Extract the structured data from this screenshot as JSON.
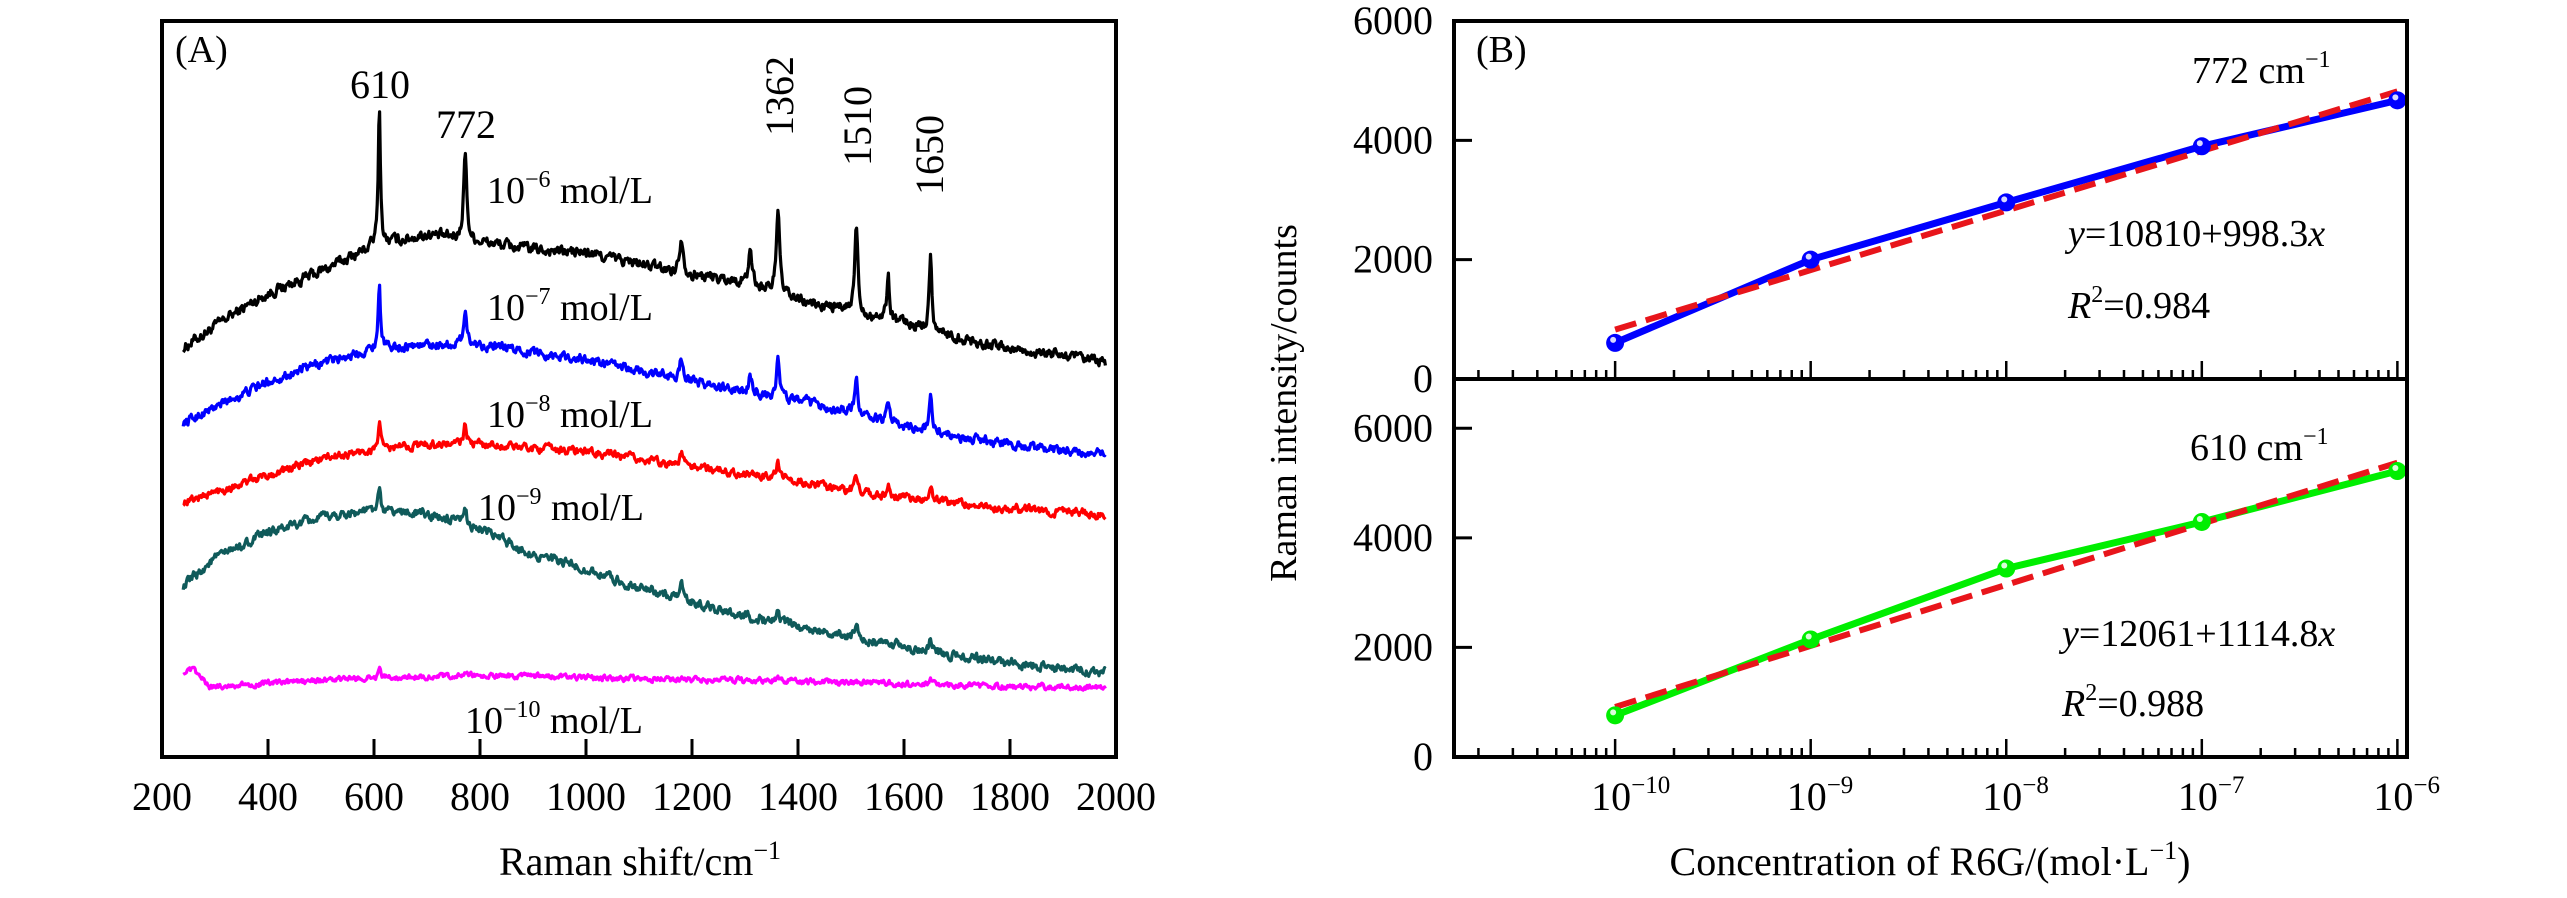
{
  "chart_data": [
    {
      "panel": "(A)",
      "type": "line",
      "title": "",
      "xlabel": "Raman shift/cm",
      "xlabel_superscript": "−1",
      "ylabel": "",
      "xlim": [
        200,
        2000
      ],
      "ylim": [
        0,
        100
      ],
      "y_units": "arbitrary (offset spectra, no y tick labels)",
      "x_ticks": [
        200,
        400,
        600,
        800,
        1000,
        1200,
        1400,
        1600,
        1800,
        2000
      ],
      "x_tick_labels": [
        "200",
        "400",
        "600",
        "800",
        "1000",
        "1200",
        "1400",
        "1600",
        "1800",
        "2000"
      ],
      "grid": false,
      "peak_annotations": [
        {
          "label": "610",
          "x": 610,
          "rotated": false
        },
        {
          "label": "772",
          "x": 772,
          "rotated": false
        },
        {
          "label": "1362",
          "x": 1362,
          "rotated": true
        },
        {
          "label": "1510",
          "x": 1510,
          "rotated": true
        },
        {
          "label": "1650",
          "x": 1650,
          "rotated": true
        }
      ],
      "series": [
        {
          "name": "10^-6 mol/L",
          "label_base": "10",
          "label_exp": "−6",
          "label_unit": " mol/L",
          "color": "#000000",
          "x_range": [
            240,
            1980
          ],
          "baseline": [
            [
              240,
              55.6
            ],
            [
              330,
              60
            ],
            [
              400,
              63
            ],
            [
              500,
              66
            ],
            [
              600,
              69.5
            ],
            [
              700,
              71
            ],
            [
              800,
              70
            ],
            [
              900,
              69
            ],
            [
              1000,
              68.5
            ],
            [
              1100,
              67
            ],
            [
              1200,
              65.5
            ],
            [
              1300,
              64.5
            ],
            [
              1400,
              62
            ],
            [
              1500,
              60.5
            ],
            [
              1600,
              59
            ],
            [
              1700,
              57
            ],
            [
              1800,
              55.5
            ],
            [
              1900,
              54.5
            ],
            [
              1980,
              53.5
            ]
          ],
          "peaks": [
            [
              610,
              18.5,
              5
            ],
            [
              772,
              12,
              7
            ],
            [
              1180,
              5,
              8
            ],
            [
              1310,
              5,
              7
            ],
            [
              1362,
              12,
              7
            ],
            [
              1510,
              12,
              7
            ],
            [
              1570,
              6,
              6
            ],
            [
              1650,
              10,
              6
            ]
          ],
          "noise": 0.6
        },
        {
          "name": "10^-7 mol/L",
          "label_base": "10",
          "label_exp": "−7",
          "label_unit": " mol/L",
          "color": "#0000ff",
          "x_range": [
            240,
            1980
          ],
          "baseline": [
            [
              240,
              45.4
            ],
            [
              300,
              47.5
            ],
            [
              400,
              51
            ],
            [
              500,
              53.5
            ],
            [
              600,
              55.5
            ],
            [
              700,
              56
            ],
            [
              800,
              56
            ],
            [
              900,
              55
            ],
            [
              1000,
              54
            ],
            [
              1100,
              52.5
            ],
            [
              1200,
              51
            ],
            [
              1300,
              49.5
            ],
            [
              1400,
              48.5
            ],
            [
              1500,
              46.8
            ],
            [
              1600,
              45
            ],
            [
              1700,
              43.5
            ],
            [
              1800,
              42.5
            ],
            [
              1900,
              41.5
            ],
            [
              1980,
              41
            ]
          ],
          "peaks": [
            [
              610,
              9,
              5
            ],
            [
              772,
              5,
              7
            ],
            [
              1180,
              3,
              8
            ],
            [
              1310,
              2.5,
              7
            ],
            [
              1362,
              5,
              7
            ],
            [
              1510,
              5,
              7
            ],
            [
              1570,
              2.5,
              6
            ],
            [
              1650,
              5,
              6
            ]
          ],
          "noise": 0.5
        },
        {
          "name": "10^-8 mol/L",
          "label_base": "10",
          "label_exp": "−8",
          "label_unit": " mol/L",
          "color": "#ff0000",
          "x_range": [
            240,
            1980
          ],
          "baseline": [
            [
              240,
              34.6
            ],
            [
              300,
              36
            ],
            [
              400,
              38.3
            ],
            [
              500,
              40.5
            ],
            [
              600,
              41.7
            ],
            [
              700,
              42.5
            ],
            [
              800,
              42.5
            ],
            [
              900,
              42
            ],
            [
              1000,
              41.5
            ],
            [
              1100,
              40.5
            ],
            [
              1200,
              39.5
            ],
            [
              1300,
              38.5
            ],
            [
              1400,
              37.5
            ],
            [
              1500,
              36
            ],
            [
              1600,
              35.3
            ],
            [
              1700,
              34.5
            ],
            [
              1800,
              33.8
            ],
            [
              1900,
              33.2
            ],
            [
              1980,
              32.9
            ]
          ],
          "peaks": [
            [
              610,
              4,
              5
            ],
            [
              772,
              2.5,
              7
            ],
            [
              1180,
              1.5,
              8
            ],
            [
              1362,
              2.5,
              7
            ],
            [
              1510,
              2.2,
              7
            ],
            [
              1570,
              1.3,
              6
            ],
            [
              1650,
              1.8,
              6
            ]
          ],
          "noise": 0.45
        },
        {
          "name": "10^-9 mol/L",
          "label_base": "10",
          "label_exp": "−9",
          "label_unit": " mol/L",
          "color": "#0f5a5a",
          "x_range": [
            240,
            1980
          ],
          "baseline": [
            [
              240,
              23.2
            ],
            [
              300,
              27
            ],
            [
              400,
              30.5
            ],
            [
              500,
              32.5
            ],
            [
              600,
              33.6
            ],
            [
              700,
              33
            ],
            [
              800,
              31
            ],
            [
              900,
              27.5
            ],
            [
              1000,
              25.5
            ],
            [
              1100,
              23
            ],
            [
              1200,
              21
            ],
            [
              1300,
              19.2
            ],
            [
              1400,
              17.8
            ],
            [
              1500,
              16.3
            ],
            [
              1600,
              15
            ],
            [
              1700,
              13.8
            ],
            [
              1800,
              12.8
            ],
            [
              1900,
              12
            ],
            [
              1980,
              11.5
            ]
          ],
          "peaks": [
            [
              610,
              2.8,
              5
            ],
            [
              772,
              2,
              7
            ],
            [
              1180,
              1.8,
              8
            ],
            [
              1362,
              2,
              7
            ],
            [
              1510,
              2,
              7
            ],
            [
              1650,
              2,
              6
            ]
          ],
          "noise": 0.5
        },
        {
          "name": "10^-10 mol/L",
          "label_base": "10",
          "label_exp": "−10",
          "label_unit": " mol/L",
          "color": "#ff00ff",
          "x_range": [
            240,
            1980
          ],
          "baseline": [
            [
              240,
              11.5
            ],
            [
              260,
              11.8
            ],
            [
              290,
              9.5
            ],
            [
              400,
              10
            ],
            [
              600,
              10.8
            ],
            [
              800,
              11
            ],
            [
              1000,
              10.8
            ],
            [
              1200,
              10.5
            ],
            [
              1400,
              10.3
            ],
            [
              1600,
              10
            ],
            [
              1800,
              9.6
            ],
            [
              1980,
              9.4
            ]
          ],
          "peaks": [
            [
              610,
              1.2,
              5
            ],
            [
              772,
              0.6,
              7
            ],
            [
              1362,
              0.5,
              7
            ],
            [
              1650,
              0.5,
              6
            ]
          ],
          "noise": 0.3
        }
      ]
    },
    {
      "panel": "(B)",
      "type": "line",
      "xlabel": "Concentration of R6G/(mol·L",
      "xlabel_superscript": "−1",
      "xlabel_suffix": ")",
      "ylabel": "Raman intensity/counts",
      "x_scale": "log",
      "xlim": [
        1.5e-11,
        1.12e-06
      ],
      "x_tick_labels": [
        {
          "value": 1e-10,
          "base": "10",
          "exp": "−10"
        },
        {
          "value": 1e-09,
          "base": "10",
          "exp": "−9"
        },
        {
          "value": 1e-08,
          "base": "10",
          "exp": "−8"
        },
        {
          "value": 1e-07,
          "base": "10",
          "exp": "−7"
        },
        {
          "value": 1e-06,
          "base": "10",
          "exp": "−6"
        }
      ],
      "grid": false,
      "subplots": [
        {
          "name": "772 cm-1",
          "label_text": "772 cm",
          "label_exp": "−1",
          "ylim": [
            0,
            6000
          ],
          "y_ticks": [
            0,
            2000,
            4000,
            6000
          ],
          "x": [
            1e-10,
            1e-09,
            1e-08,
            1e-07,
            1e-06
          ],
          "series": [
            {
              "name": "measured",
              "color": "#0000ff",
              "style": "solid-markers",
              "values": [
                605,
                2000,
                2960,
                3900,
                4670
              ]
            },
            {
              "name": "linear fit",
              "color": "#e8151b",
              "style": "dashed",
              "intercept": 10810,
              "slope": 998.3
            }
          ],
          "equation_y": "y",
          "equation_rest": "=10810+998.3",
          "equation_x": "x",
          "r2_R": "R",
          "r2_exp": "2",
          "r2_value": "=0.984"
        },
        {
          "name": "610 cm-1",
          "label_text": "610 cm",
          "label_exp": "−1",
          "ylim": [
            0,
            6900
          ],
          "y_ticks": [
            0,
            2000,
            4000,
            6000
          ],
          "x": [
            1e-10,
            1e-09,
            1e-08,
            1e-07,
            1e-06
          ],
          "series": [
            {
              "name": "measured",
              "color": "#00ee00",
              "style": "solid-markers",
              "values": [
                760,
                2145,
                3440,
                4290,
                5220
              ]
            },
            {
              "name": "linear fit",
              "color": "#e8151b",
              "style": "dashed",
              "intercept": 12061,
              "slope": 1114.8
            }
          ],
          "equation_y": "y",
          "equation_rest": "=12061+1114.8",
          "equation_x": "x",
          "r2_R": "R",
          "r2_exp": "2",
          "r2_value": "=0.988"
        }
      ]
    }
  ]
}
